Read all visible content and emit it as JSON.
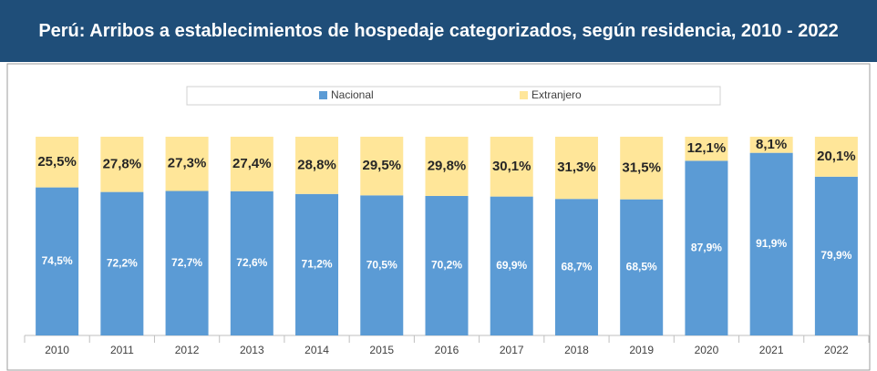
{
  "chart_data": {
    "type": "stacked_bar",
    "title": "Perú: Arribos a establecimientos de hospedaje categorizados, según residencia, 2010 - 2022",
    "categories": [
      "2010",
      "2011",
      "2012",
      "2013",
      "2014",
      "2015",
      "2016",
      "2017",
      "2018",
      "2019",
      "2020",
      "2021",
      "2022"
    ],
    "ylim": [
      0,
      100
    ],
    "series": [
      {
        "name": "Nacional",
        "color": "#5b9bd5",
        "values": [
          74.5,
          72.2,
          72.7,
          72.6,
          71.2,
          70.5,
          70.2,
          69.9,
          68.7,
          68.5,
          87.9,
          91.9,
          79.9
        ],
        "value_labels": [
          "74,5%",
          "72,2%",
          "72,7%",
          "72,6%",
          "71,2%",
          "70,5%",
          "70,2%",
          "69,9%",
          "68,7%",
          "68,5%",
          "87,9%",
          "91,9%",
          "79,9%"
        ]
      },
      {
        "name": "Extranjero",
        "color": "#ffe699",
        "values": [
          25.5,
          27.8,
          27.3,
          27.4,
          28.8,
          29.5,
          29.8,
          30.1,
          31.3,
          31.5,
          12.1,
          8.1,
          20.1
        ],
        "value_labels": [
          "25,5%",
          "27,8%",
          "27,3%",
          "27,4%",
          "28,8%",
          "29,5%",
          "29,8%",
          "30,1%",
          "31,3%",
          "31,5%",
          "12,1%",
          "8,1%",
          "20,1%"
        ]
      }
    ]
  }
}
